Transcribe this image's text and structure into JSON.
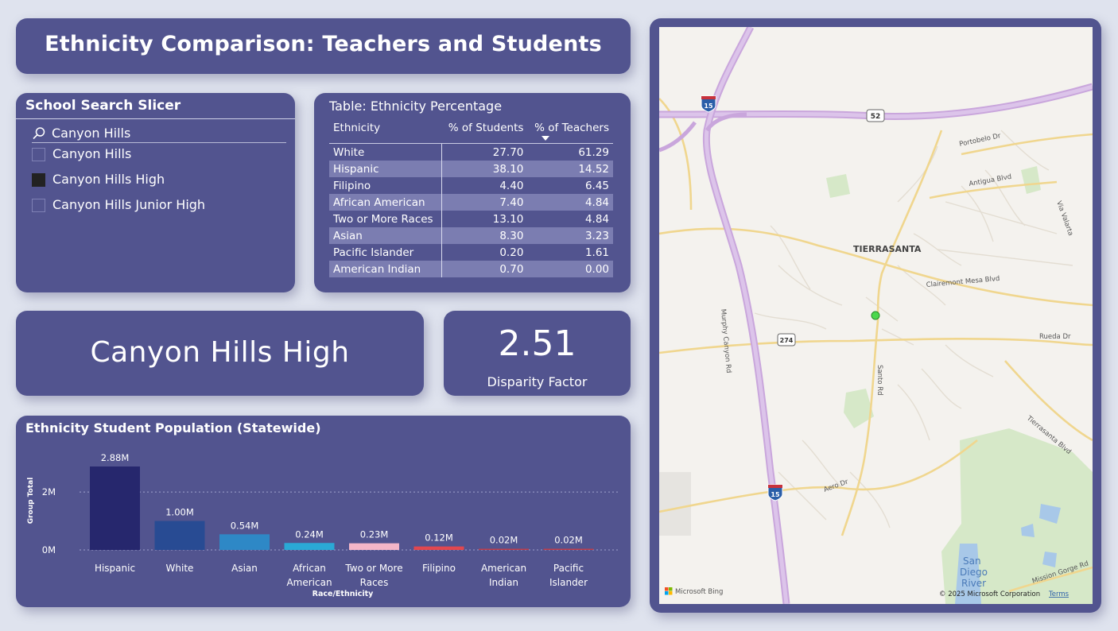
{
  "title": "Ethnicity Comparison: Teachers and Students",
  "slicer": {
    "heading": "School Search Slicer",
    "search_value": "Canyon Hills",
    "items": [
      {
        "label": "Canyon Hills",
        "checked": false
      },
      {
        "label": "Canyon Hills High",
        "checked": true
      },
      {
        "label": "Canyon Hills Junior High",
        "checked": false
      }
    ]
  },
  "table": {
    "heading": "Table: Ethnicity Percentage",
    "columns": [
      "Ethnicity",
      "% of Students",
      "% of Teachers"
    ],
    "rows": [
      [
        "White",
        "27.70",
        "61.29"
      ],
      [
        "Hispanic",
        "38.10",
        "14.52"
      ],
      [
        "Filipino",
        "4.40",
        "6.45"
      ],
      [
        "African American",
        "7.40",
        "4.84"
      ],
      [
        "Two or More Races",
        "13.10",
        "4.84"
      ],
      [
        "Asian",
        "8.30",
        "3.23"
      ],
      [
        "Pacific Islander",
        "0.20",
        "1.61"
      ],
      [
        "American Indian",
        "0.70",
        "0.00"
      ]
    ]
  },
  "school_card": {
    "name": "Canyon Hills High"
  },
  "disparity_card": {
    "value": "2.51",
    "label": "Disparity Factor"
  },
  "chart_data": {
    "type": "bar",
    "title": "Ethnicity Student Population (Statewide)",
    "xlabel": "Race/Ethnicity",
    "ylabel": "Group Total",
    "categories": [
      [
        "Hispanic"
      ],
      [
        "White"
      ],
      [
        "Asian"
      ],
      [
        "African",
        "American"
      ],
      [
        "Two or More",
        "Races"
      ],
      [
        "Filipino"
      ],
      [
        "American",
        "Indian"
      ],
      [
        "Pacific",
        "Islander"
      ]
    ],
    "values": [
      2880000,
      1000000,
      540000,
      240000,
      230000,
      120000,
      20000,
      20000
    ],
    "data_labels": [
      "2.88M",
      "1.00M",
      "0.54M",
      "0.24M",
      "0.23M",
      "0.12M",
      "0.02M",
      "0.02M"
    ],
    "colors": [
      "#26276d",
      "#284b93",
      "#2e88c6",
      "#2aa9d6",
      "#f4b6c8",
      "#e2474f",
      "#c03c4a",
      "#c03c4a"
    ],
    "yticks": [
      {
        "value": 0,
        "label": "0M"
      },
      {
        "value": 2000000,
        "label": "2M"
      }
    ],
    "ylim": [
      0,
      2880000
    ],
    "grid": true
  },
  "map": {
    "neighborhood": "TIERRASANTA",
    "roads": [
      "Portobelo Dr",
      "Antigua Blvd",
      "Via Valarta",
      "Clairemont Mesa Blvd",
      "Rueda Dr",
      "Santo Rd",
      "Murphy Canyon Rd",
      "Tierrasanta Blvd",
      "Aero Dr",
      "Mission Gorge Rd"
    ],
    "shields": [
      "15",
      "52",
      "274",
      "15"
    ],
    "river": [
      "San",
      "Diego",
      "River"
    ],
    "attribution_logo": "Microsoft Bing",
    "copyright": "© 2025 Microsoft Corporation",
    "terms": "Terms"
  }
}
